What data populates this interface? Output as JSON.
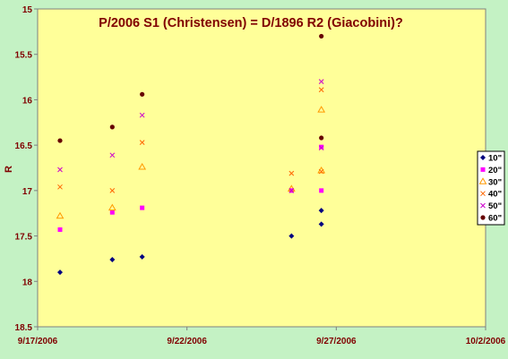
{
  "chart_data": {
    "type": "scatter",
    "title": "P/2006 S1 (Christensen) = D/1896 R2 (Giacobini)?",
    "xlabel": "",
    "ylabel": "R",
    "x_ticks": [
      "9/17/2006",
      "9/22/2006",
      "9/27/2006",
      "10/2/2006"
    ],
    "xlim": [
      "9/17/2006",
      "10/2/2006"
    ],
    "ylim": [
      15,
      18.5
    ],
    "y_reversed": true,
    "y_ticks": [
      "15",
      "15.5",
      "16",
      "16.5",
      "17",
      "17.5",
      "18",
      "18.5"
    ],
    "grid": false,
    "legend_position": "right",
    "plot_bg": "#ffff99",
    "title_color": "#800000",
    "series": [
      {
        "name": "10\"",
        "marker": "diamond",
        "color": "#000080",
        "points": [
          {
            "x": "9/17/2006 18:00",
            "y": 17.9
          },
          {
            "x": "9/19/2006 12:00",
            "y": 17.76
          },
          {
            "x": "9/20/2006 12:00",
            "y": 17.73
          },
          {
            "x": "9/25/2006 12:00",
            "y": 17.5
          },
          {
            "x": "9/26/2006 12:00",
            "y": 17.37
          },
          {
            "x": "9/26/2006 12:00",
            "y": 17.22
          }
        ]
      },
      {
        "name": "20\"",
        "marker": "square",
        "color": "#ff00ff",
        "points": [
          {
            "x": "9/17/2006 18:00",
            "y": 17.43
          },
          {
            "x": "9/19/2006 12:00",
            "y": 17.24
          },
          {
            "x": "9/20/2006 12:00",
            "y": 17.19
          },
          {
            "x": "9/25/2006 12:00",
            "y": 17.0
          },
          {
            "x": "9/26/2006 12:00",
            "y": 17.0
          },
          {
            "x": "9/26/2006 12:00",
            "y": 16.52
          }
        ]
      },
      {
        "name": "30\"",
        "marker": "triangle",
        "color": "#ff9900",
        "points": [
          {
            "x": "9/17/2006 18:00",
            "y": 17.28
          },
          {
            "x": "9/19/2006 12:00",
            "y": 17.19
          },
          {
            "x": "9/20/2006 12:00",
            "y": 16.74
          },
          {
            "x": "9/25/2006 12:00",
            "y": 16.98
          },
          {
            "x": "9/26/2006 12:00",
            "y": 16.78
          },
          {
            "x": "9/26/2006 12:00",
            "y": 16.11
          }
        ]
      },
      {
        "name": "40\"",
        "marker": "x",
        "color": "#ff6600",
        "points": [
          {
            "x": "9/17/2006 18:00",
            "y": 16.96
          },
          {
            "x": "9/19/2006 12:00",
            "y": 17.0
          },
          {
            "x": "9/20/2006 12:00",
            "y": 16.47
          },
          {
            "x": "9/25/2006 12:00",
            "y": 16.81
          },
          {
            "x": "9/26/2006 12:00",
            "y": 16.79
          },
          {
            "x": "9/26/2006 12:00",
            "y": 15.89
          }
        ]
      },
      {
        "name": "50\"",
        "marker": "x",
        "color": "#cc00cc",
        "points": [
          {
            "x": "9/17/2006 18:00",
            "y": 16.77
          },
          {
            "x": "9/19/2006 12:00",
            "y": 16.61
          },
          {
            "x": "9/20/2006 12:00",
            "y": 16.17
          },
          {
            "x": "9/25/2006 12:00",
            "y": 17.0
          },
          {
            "x": "9/26/2006 12:00",
            "y": 16.53
          },
          {
            "x": "9/26/2006 12:00",
            "y": 15.8
          }
        ]
      },
      {
        "name": "60\"",
        "marker": "circle",
        "color": "#660000",
        "points": [
          {
            "x": "9/17/2006 18:00",
            "y": 16.45
          },
          {
            "x": "9/19/2006 12:00",
            "y": 16.3
          },
          {
            "x": "9/20/2006 12:00",
            "y": 15.94
          },
          {
            "x": "9/26/2006 12:00",
            "y": 16.42
          },
          {
            "x": "9/26/2006 12:00",
            "y": 15.3
          }
        ]
      }
    ]
  }
}
